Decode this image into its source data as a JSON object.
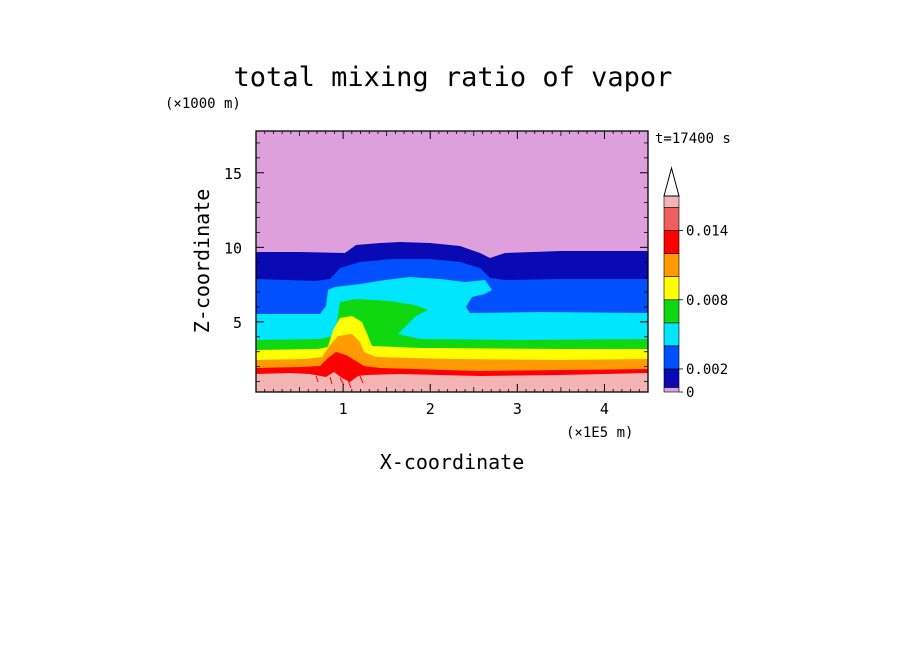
{
  "chart_data": {
    "type": "heatmap",
    "title": "total mixing ratio of vapor",
    "xlabel": "X-coordinate",
    "ylabel": "Z-coordinate",
    "x_unit": "(×1E5 m)",
    "y_unit": "(×1000 m)",
    "time_label": "t=17400 s",
    "xlim": [
      0,
      4.5
    ],
    "ylim": [
      0.3,
      17.8
    ],
    "x_ticks": [
      1,
      2,
      3,
      4
    ],
    "y_ticks": [
      5,
      10,
      15
    ],
    "colorbar": {
      "min": 0,
      "max": 0.017,
      "extend": "max",
      "levels": [
        0,
        0.0004,
        0.002,
        0.004,
        0.006,
        0.008,
        0.01,
        0.012,
        0.014,
        0.016,
        0.017
      ],
      "colors": [
        "#dda0dd",
        "#0a0ab4",
        "#0050ff",
        "#00e6ff",
        "#10d810",
        "#ffff00",
        "#ff9a00",
        "#ff0000",
        "#ee6060",
        "#f5b4b4"
      ],
      "tick_labels": [
        {
          "value": 0,
          "label": "0"
        },
        {
          "value": 0.002,
          "label": "0.002"
        },
        {
          "value": 0.008,
          "label": "0.008"
        },
        {
          "value": 0.014,
          "label": "0.014"
        }
      ]
    },
    "contour_bands": [
      {
        "color": "#dda0dd",
        "z_bottom": 9.6
      },
      {
        "color": "#0a0ab4",
        "z_bottom": 7.7
      },
      {
        "color": "#0050ff",
        "z_bottom": 5.5
      },
      {
        "color": "#00e6ff",
        "z_bottom": 3.6
      },
      {
        "color": "#10d810",
        "z_bottom": 2.9
      },
      {
        "color": "#ffff00",
        "z_bottom": 2.3
      },
      {
        "color": "#ff9a00",
        "z_bottom": 1.6
      },
      {
        "color": "#ff0000",
        "z_bottom": 1.3
      },
      {
        "color": "#f5b4b4",
        "z_bottom": 0.3
      }
    ]
  }
}
